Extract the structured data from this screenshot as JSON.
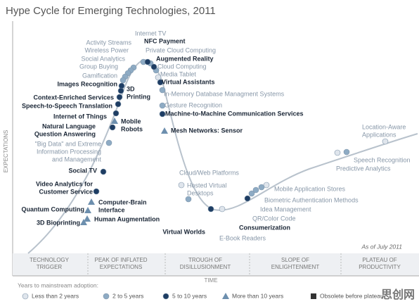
{
  "title": "Hype Cycle for Emerging Technologies, 2011",
  "y_axis_label": "EXPECTATIONS",
  "x_axis_label": "TIME",
  "as_of": "As of July 2011",
  "phases": [
    [
      "TECHNOLOGY",
      "TRIGGER"
    ],
    [
      "PEAK OF INFLATED",
      "EXPECTATIONS"
    ],
    [
      "TROUGH OF",
      "DISILLUSIONMENT"
    ],
    [
      "SLOPE OF",
      "ENLIGHTENMENT"
    ],
    [
      "PLATEAU OF",
      "PRODUCTIVITY"
    ]
  ],
  "legend_title": "Years to mainstream adoption:",
  "watermark": "思创网",
  "adoption_groups": [
    {
      "label": "Less than 2 years",
      "marker": "circle",
      "color": "#dfe5ec",
      "nodes": [
        {
          "lines": [
            "Media Tablet"
          ]
        },
        {
          "lines": [
            "Cloud/Web Platforms"
          ]
        },
        {
          "lines": [
            "E-Book Readers"
          ]
        },
        {
          "lines": [
            "Mobile Application Stores"
          ]
        },
        {
          "lines": [
            "Predictive Analytics"
          ]
        },
        {
          "lines": [
            "Location-Aware",
            "Applications"
          ]
        }
      ]
    },
    {
      "label": "2 to 5 years",
      "marker": "circle",
      "color": "#8eabc4",
      "nodes": [
        {
          "lines": [
            "Activity Streams"
          ]
        },
        {
          "lines": [
            "Wireless Power"
          ]
        },
        {
          "lines": [
            "Social Analytics"
          ]
        },
        {
          "lines": [
            "Group Buying"
          ]
        },
        {
          "lines": [
            "Internet TV"
          ]
        },
        {
          "lines": [
            "Private Cloud Computing"
          ]
        },
        {
          "lines": [
            "Cloud Computing"
          ]
        },
        {
          "lines": [
            "In-Memory Database Managment Systems"
          ]
        },
        {
          "lines": [
            "Gesture Recognition"
          ]
        },
        {
          "lines": [
            "Gamification"
          ]
        },
        {
          "lines": [
            "\"Big Data\" and Extreme",
            "Information Processing",
            "and Management"
          ]
        },
        {
          "lines": [
            "Hosted Virtual",
            "Desktops"
          ]
        },
        {
          "lines": [
            "QR/Color Code"
          ]
        },
        {
          "lines": [
            "Idea Management"
          ]
        },
        {
          "lines": [
            "Biometric Authentication Methods"
          ]
        },
        {
          "lines": [
            "Speech Recognition"
          ]
        }
      ]
    },
    {
      "label": "5 to 10 years",
      "marker": "circle",
      "color": "#1e3d63",
      "nodes": [
        {
          "lines": [
            "NFC Payment"
          ]
        },
        {
          "lines": [
            "Augmented Reality"
          ]
        },
        {
          "lines": [
            "Virtual Assistants"
          ]
        },
        {
          "lines": [
            "Machine-to-Machine Communication Services"
          ]
        },
        {
          "lines": [
            "Images Recognition"
          ]
        },
        {
          "lines": [
            "3D",
            "Printing"
          ]
        },
        {
          "lines": [
            "Context-Enriched Services"
          ]
        },
        {
          "lines": [
            "Speech-to-Speech Translation"
          ]
        },
        {
          "lines": [
            "Internet of Things"
          ]
        },
        {
          "lines": [
            "Natural Language",
            "Question Answering"
          ]
        },
        {
          "lines": [
            "Social TV"
          ]
        },
        {
          "lines": [
            "Video Analytics for",
            "Customer Service"
          ]
        },
        {
          "lines": [
            "Virtual Worlds"
          ]
        },
        {
          "lines": [
            "Consumerization"
          ]
        }
      ]
    },
    {
      "label": "More than 10 years",
      "marker": "triangle",
      "color": "#6d8fae",
      "nodes": [
        {
          "lines": [
            "Mesh Networks: Sensor"
          ]
        },
        {
          "lines": [
            "Mobile",
            "Robots"
          ]
        },
        {
          "lines": [
            "Computer-Brain",
            "Interface"
          ]
        },
        {
          "lines": [
            "Quantum Computing"
          ]
        },
        {
          "lines": [
            "Human Augmentation"
          ]
        },
        {
          "lines": [
            "3D Bioprinting"
          ]
        }
      ]
    },
    {
      "label": "Obsolete before plateau",
      "marker": "square",
      "color": "#333333",
      "nodes": []
    }
  ]
}
